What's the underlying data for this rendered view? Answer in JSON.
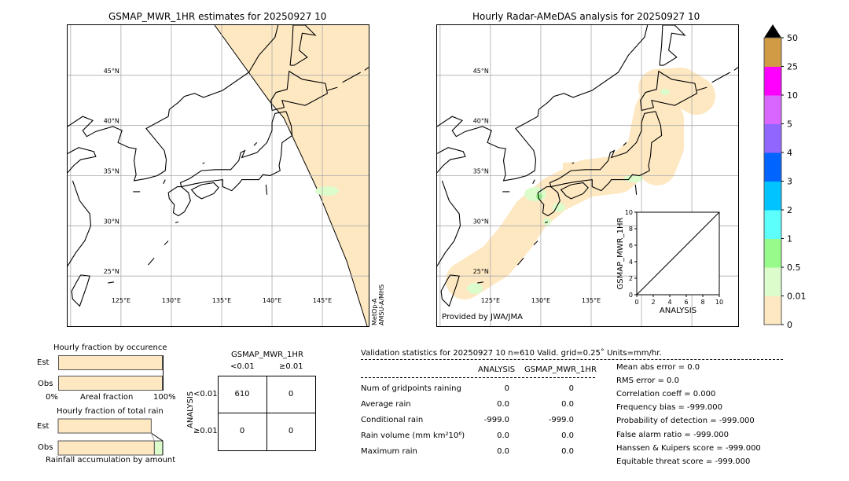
{
  "left_map": {
    "title": "GSMAP_MWR_1HR estimates for 20250927 10",
    "lat_labels": [
      "45°N",
      "40°N",
      "35°N",
      "30°N",
      "25°N"
    ],
    "lon_labels": [
      "125°E",
      "130°E",
      "135°E",
      "140°E",
      "145°E"
    ],
    "sensor_label_1": "MetOp-A",
    "sensor_label_2": "AMSU-A/MHS"
  },
  "right_map": {
    "title": "Hourly Radar-AMeDAS analysis for 20250927 10",
    "lat_labels": [
      "45°N",
      "40°N",
      "35°N",
      "30°N",
      "25°N"
    ],
    "lon_labels": [
      "125°E",
      "130°E",
      "135°E"
    ],
    "credit": "Provided by JWA/JMA"
  },
  "colorbar": {
    "labels": [
      "0",
      "0.01",
      "0.5",
      "1",
      "2",
      "3",
      "4",
      "5",
      "10",
      "25",
      "50"
    ],
    "colors": [
      "#fee8c2",
      "#dcfccc",
      "#99fa8c",
      "#5cfffc",
      "#00c3ff",
      "#0064ff",
      "#9166ff",
      "#d966ff",
      "#ff00ff",
      "#d19b45"
    ],
    "extend_color": "#000000"
  },
  "chart_data": [
    {
      "type": "scatter",
      "xlabel": "ANALYSIS",
      "ylabel": "GSMAP_MWR_1HR",
      "xlim": [
        0,
        10
      ],
      "ylim": [
        0,
        10
      ],
      "xticks": [
        "0",
        "2",
        "4",
        "6",
        "8",
        "10"
      ],
      "yticks": [
        "0",
        "2",
        "4",
        "6",
        "8",
        "10"
      ],
      "points": []
    },
    {
      "type": "bar",
      "title": "Hourly fraction by occurence",
      "categories": [
        "Est",
        "Obs"
      ],
      "values": [
        100,
        100
      ],
      "xlabel": "Areal fraction",
      "xtick_left": "0%",
      "xtick_right": "100%"
    },
    {
      "type": "bar",
      "title": "Hourly fraction of total rain",
      "categories": [
        "Est",
        "Obs"
      ],
      "series": [
        {
          "values": [
            89,
            92
          ],
          "color": "#fee8c2"
        },
        {
          "values": [
            0,
            8
          ],
          "color": "#dcfccc"
        }
      ],
      "xlabel": "Rainfall accumulation by amount"
    }
  ],
  "contingency": {
    "title": "GSMAP_MWR_1HR",
    "col_labels": [
      "<0.01",
      "≥0.01"
    ],
    "row_axis": "ANALYSIS",
    "row_labels": [
      "<0.01",
      "≥0.01"
    ],
    "cells": [
      [
        "610",
        "0"
      ],
      [
        "0",
        "0"
      ]
    ]
  },
  "stats": {
    "header": "Validation statistics for 20250927 10  n=610 Valid. grid=0.25˚ Units=mm/hr.",
    "col_analysis": "ANALYSIS",
    "col_gsmap": "GSMAP_MWR_1HR",
    "rows": [
      {
        "label": "Num of gridpoints raining",
        "analysis": "0",
        "gsmap": "0"
      },
      {
        "label": "Average rain",
        "analysis": "0.0",
        "gsmap": "0.0"
      },
      {
        "label": "Conditional rain",
        "analysis": "-999.0",
        "gsmap": "-999.0"
      },
      {
        "label": "Rain volume (mm km²10⁶)",
        "analysis": "0.0",
        "gsmap": "0.0"
      },
      {
        "label": "Maximum rain",
        "analysis": "0.0",
        "gsmap": "0.0"
      }
    ],
    "scores": [
      "Mean abs error =    0.0",
      "RMS error =    0.0",
      "Correlation coeff =  0.000",
      "Frequency bias = -999.000",
      "Probability of detection = -999.000",
      "False alarm ratio = -999.000",
      "Hanssen & Kuipers score = -999.000",
      "Equitable threat score = -999.000"
    ]
  }
}
